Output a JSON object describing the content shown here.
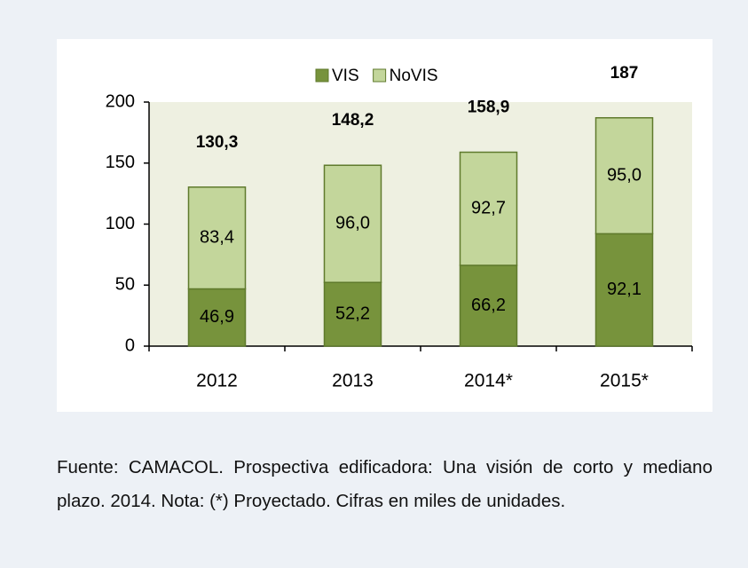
{
  "chart_data": {
    "type": "stacked_bar",
    "categories": [
      "2012",
      "2013",
      "2014*",
      "2015*"
    ],
    "series": [
      {
        "name": "VIS",
        "color": "#77933c",
        "values": [
          46.9,
          52.2,
          66.2,
          92.1
        ],
        "value_labels": [
          "46,9",
          "52,2",
          "66,2",
          "92,1"
        ]
      },
      {
        "name": "NoVIS",
        "color": "#c3d69b",
        "values": [
          83.4,
          96.0,
          92.7,
          95.0
        ],
        "value_labels": [
          "83,4",
          "96,0",
          "92,7",
          "95,0"
        ]
      }
    ],
    "totals": [
      130.3,
      148.2,
      158.9,
      187
    ],
    "total_labels": [
      "130,3",
      "148,2",
      "158,9",
      "187"
    ],
    "ylim": [
      0,
      200
    ],
    "yticks": [
      0,
      50,
      100,
      150,
      200
    ],
    "grid": false,
    "legend": "top"
  },
  "caption": "Fuente: CAMACOL. Prospectiva edificadora: Una visión de corto y mediano plazo. 2014. Nota: (*) Proyectado. Cifras en miles de unidades."
}
